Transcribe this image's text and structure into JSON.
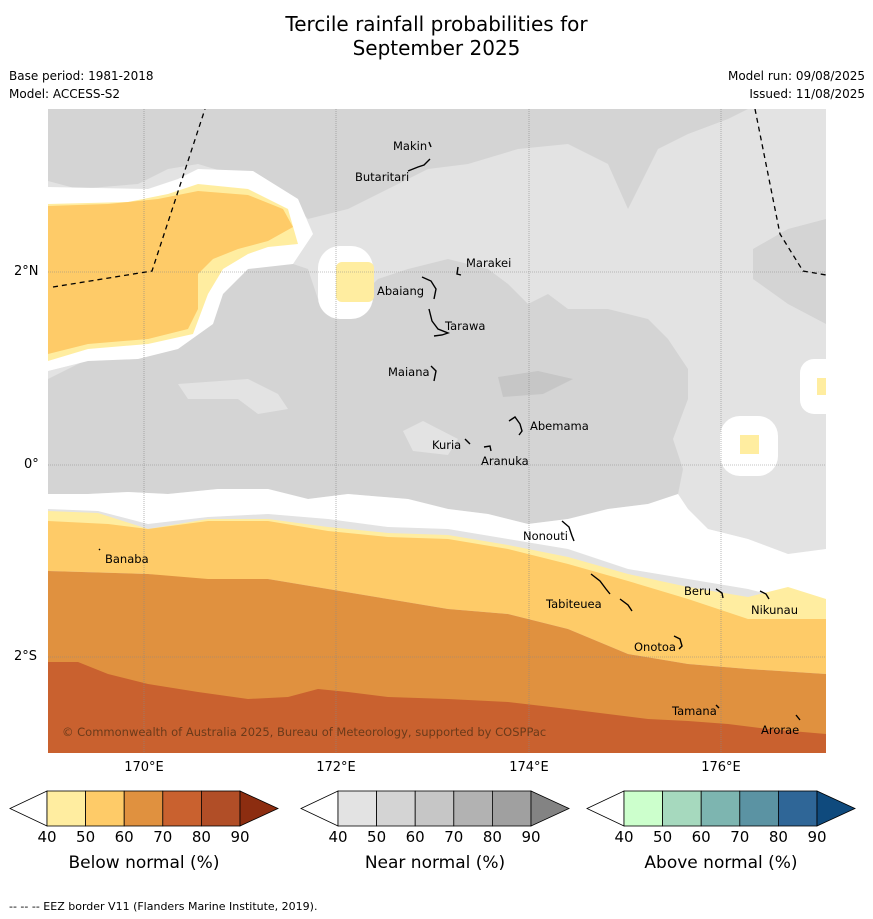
{
  "title_line1": "Tercile rainfall probabilities for",
  "title_line2": "September 2025",
  "base_period": "Base period: 1981-2018",
  "model": "Model: ACCESS-S2",
  "model_run": "Model run: 09/08/2025",
  "issued": "Issued: 11/08/2025",
  "map": {
    "lat_labels": [
      "2°N",
      "0°",
      "2°S"
    ],
    "lon_labels": [
      "170°E",
      "172°E",
      "174°E",
      "176°E"
    ],
    "places": {
      "makin": "Makin",
      "butaritari": "Butaritari",
      "marakei": "Marakei",
      "abaiang": "Abaiang",
      "tarawa": "Tarawa",
      "maiana": "Maiana",
      "abemama": "Abemama",
      "kuria": "Kuria",
      "aranuka": "Aranuka",
      "nonouti": "Nonouti",
      "banaba": "Banaba",
      "tabiteuea": "Tabiteuea",
      "beru": "Beru",
      "nikunau": "Nikunau",
      "onotoa": "Onotoa",
      "tamana": "Tamana",
      "arorae": "Arorae"
    },
    "copyright": "© Commonwealth of Australia 2025, Bureau of Meteorology, supported by COSPPac"
  },
  "colorbars": [
    {
      "label": "Below normal (%)",
      "ticks": [
        "40",
        "50",
        "60",
        "70",
        "80",
        "90"
      ],
      "colors": [
        "#ffffff",
        "#ffeda0",
        "#fecb68",
        "#e0913f",
        "#c9612f",
        "#b14e27",
        "#8c2d10"
      ]
    },
    {
      "label": "Near normal (%)",
      "ticks": [
        "40",
        "50",
        "60",
        "70",
        "80",
        "90"
      ],
      "colors": [
        "#ffffff",
        "#e3e3e3",
        "#d4d4d4",
        "#c6c6c6",
        "#b2b2b2",
        "#a0a0a0",
        "#838383"
      ]
    },
    {
      "label": "Above normal (%)",
      "ticks": [
        "40",
        "50",
        "60",
        "70",
        "80",
        "90"
      ],
      "colors": [
        "#ffffff",
        "#ccffcc",
        "#a6d9be",
        "#7db5b0",
        "#5b93a3",
        "#2f6697",
        "#0f4a7d"
      ]
    }
  ],
  "footer": "--  --  -- EEZ border V11 (Flanders Marine Institute, 2019).",
  "colors": {
    "near50": "#e3e3e3",
    "near60": "#d4d4d4",
    "near70": "#c6c6c6",
    "below50": "#ffeda0",
    "below60": "#fecb68",
    "below70": "#e0913f",
    "below80": "#c9612f"
  }
}
